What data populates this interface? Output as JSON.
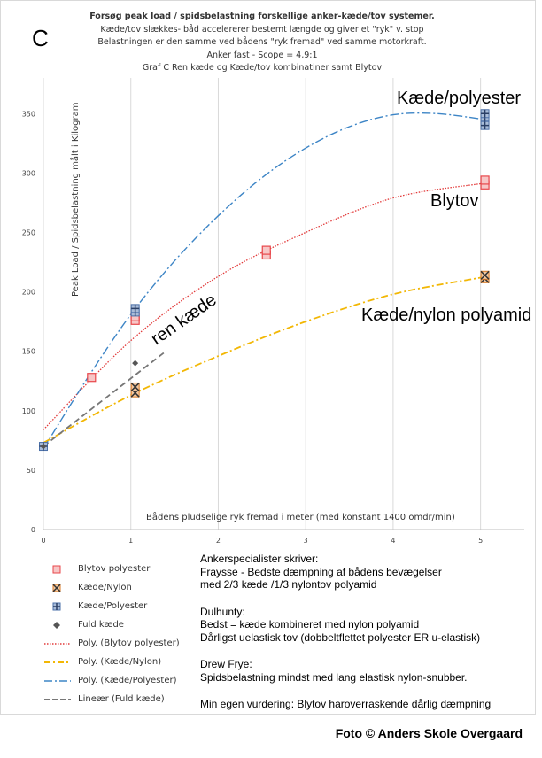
{
  "panel_letter": "C",
  "title_lines": [
    "Forsøg peak load / spidsbelastning  forskellige anker-kæde/tov systemer.",
    "Kæde/tov slækkes- båd accelererer bestemt længde og giver et \"ryk\" v. stop",
    "Belastningen er den samme ved bådens \"ryk fremad\" ved samme motorkraft.",
    "Anker  fast - Scope = 4,9:1",
    "Graf C   Ren kæde og Kæde/tov kombinatiner samt Blytov"
  ],
  "chart_data": {
    "type": "scatter",
    "xlabel": "Bådens pludselige ryk fremad i meter (med konstant 1400 omdr/min)",
    "ylabel": "Peak Load / Spidsbelastning målt i Kilogram",
    "xlim": [
      0,
      5.5
    ],
    "ylim": [
      0,
      380
    ],
    "x_ticks": [
      "0",
      "1",
      "2",
      "3",
      "4",
      "5"
    ],
    "y_ticks": [
      "0",
      "50",
      "100",
      "150",
      "200",
      "250",
      "300",
      "350"
    ],
    "grid": "vertical",
    "series": [
      {
        "name": "Blytov polyester",
        "marker": "square",
        "color": "#e8474b",
        "points": [
          [
            0.55,
            128
          ],
          [
            1.05,
            176
          ],
          [
            1.05,
            179
          ],
          [
            2.55,
            231
          ],
          [
            2.55,
            235
          ],
          [
            5.05,
            290
          ],
          [
            5.05,
            294
          ]
        ]
      },
      {
        "name": "Kæde/Nylon",
        "marker": "x-square",
        "color": "#d97a24",
        "points": [
          [
            1.05,
            115
          ],
          [
            1.05,
            120
          ],
          [
            5.05,
            211
          ],
          [
            5.05,
            214
          ]
        ]
      },
      {
        "name": "Kæde/Polyester",
        "marker": "plus-square",
        "color": "#4a6fa8",
        "points": [
          [
            0,
            70
          ],
          [
            1.05,
            183
          ],
          [
            1.05,
            186
          ],
          [
            5.05,
            340
          ],
          [
            5.05,
            347
          ],
          [
            5.05,
            350
          ]
        ]
      },
      {
        "name": "Fuld kæde",
        "marker": "diamond",
        "color": "#555555",
        "points": [
          [
            0,
            70
          ],
          [
            1.05,
            140
          ]
        ]
      }
    ],
    "trendlines": [
      {
        "name": "Poly. (Blytov polyester)",
        "color": "#e23a3a",
        "dash": "dotted",
        "points": [
          [
            0,
            84
          ],
          [
            1,
            159
          ],
          [
            2,
            213
          ],
          [
            3,
            250
          ],
          [
            4,
            279
          ],
          [
            5,
            291
          ],
          [
            5.05,
            291
          ]
        ]
      },
      {
        "name": "Poly. (Kæde/Nylon)",
        "color": "#f2b705",
        "dash": "dashdot",
        "points": [
          [
            0,
            73
          ],
          [
            1,
            113
          ],
          [
            2,
            146
          ],
          [
            3,
            175
          ],
          [
            4,
            198
          ],
          [
            5,
            212
          ],
          [
            5.05,
            213
          ]
        ]
      },
      {
        "name": "Poly. (Kæde/Polyester)",
        "color": "#3d85c6",
        "dash": "longdashdot",
        "points": [
          [
            0,
            68
          ],
          [
            0.5,
            127
          ],
          [
            1,
            181
          ],
          [
            1.5,
            226
          ],
          [
            2,
            264
          ],
          [
            2.5,
            296
          ],
          [
            3,
            321
          ],
          [
            3.5,
            339
          ],
          [
            4,
            349
          ],
          [
            4.5,
            350
          ],
          [
            5.05,
            345
          ]
        ]
      },
      {
        "name": "Lineær (Fuld kæde)",
        "color": "#777777",
        "dash": "dashed",
        "points": [
          [
            0,
            70
          ],
          [
            1.4,
            150
          ]
        ]
      }
    ],
    "annotations": [
      "Kæde/polyester",
      "Blytov",
      "Kæde/nylon polyamid",
      "ren kæde"
    ]
  },
  "legend": [
    {
      "label": "Blytov polyester",
      "type": "marker-square",
      "color": "#e8474b"
    },
    {
      "label": "Kæde/Nylon",
      "type": "marker-x",
      "color": "#d97a24"
    },
    {
      "label": "Kæde/Polyester",
      "type": "marker-plus",
      "color": "#4a6fa8"
    },
    {
      "label": "Fuld kæde",
      "type": "marker-diamond",
      "color": "#555555"
    },
    {
      "label": "Poly. (Blytov polyester)",
      "type": "line-dotted",
      "color": "#e23a3a"
    },
    {
      "label": "Poly. (Kæde/Nylon)",
      "type": "line-dashdot",
      "color": "#f2b705"
    },
    {
      "label": "Poly. (Kæde/Polyester)",
      "type": "line-longdashdot",
      "color": "#3d85c6"
    },
    {
      "label": "Lineær (Fuld kæde)",
      "type": "line-dashed",
      "color": "#777777"
    }
  ],
  "notes": {
    "block1": [
      "Ankerspecialister skriver:",
      "Fraysse - Bedste dæmpning af bådens bevægelser",
      "med 2/3 kæde /1/3 nylontov polyamid"
    ],
    "block2": [
      "Dulhunty:",
      "Bedst = kæde kombineret med nylon polyamid",
      "Dårligst uelastisk tov (dobbeltflettet polyester ER u-elastisk)"
    ],
    "block3": [
      "Drew Frye:",
      "Spidsbelastning mindst med lang elastisk nylon-snubber."
    ],
    "block4": [
      "Min egen vurdering: Blytov haroverraskende dårlig dæmpning"
    ]
  },
  "credit": "Foto © Anders Skole Overgaard"
}
